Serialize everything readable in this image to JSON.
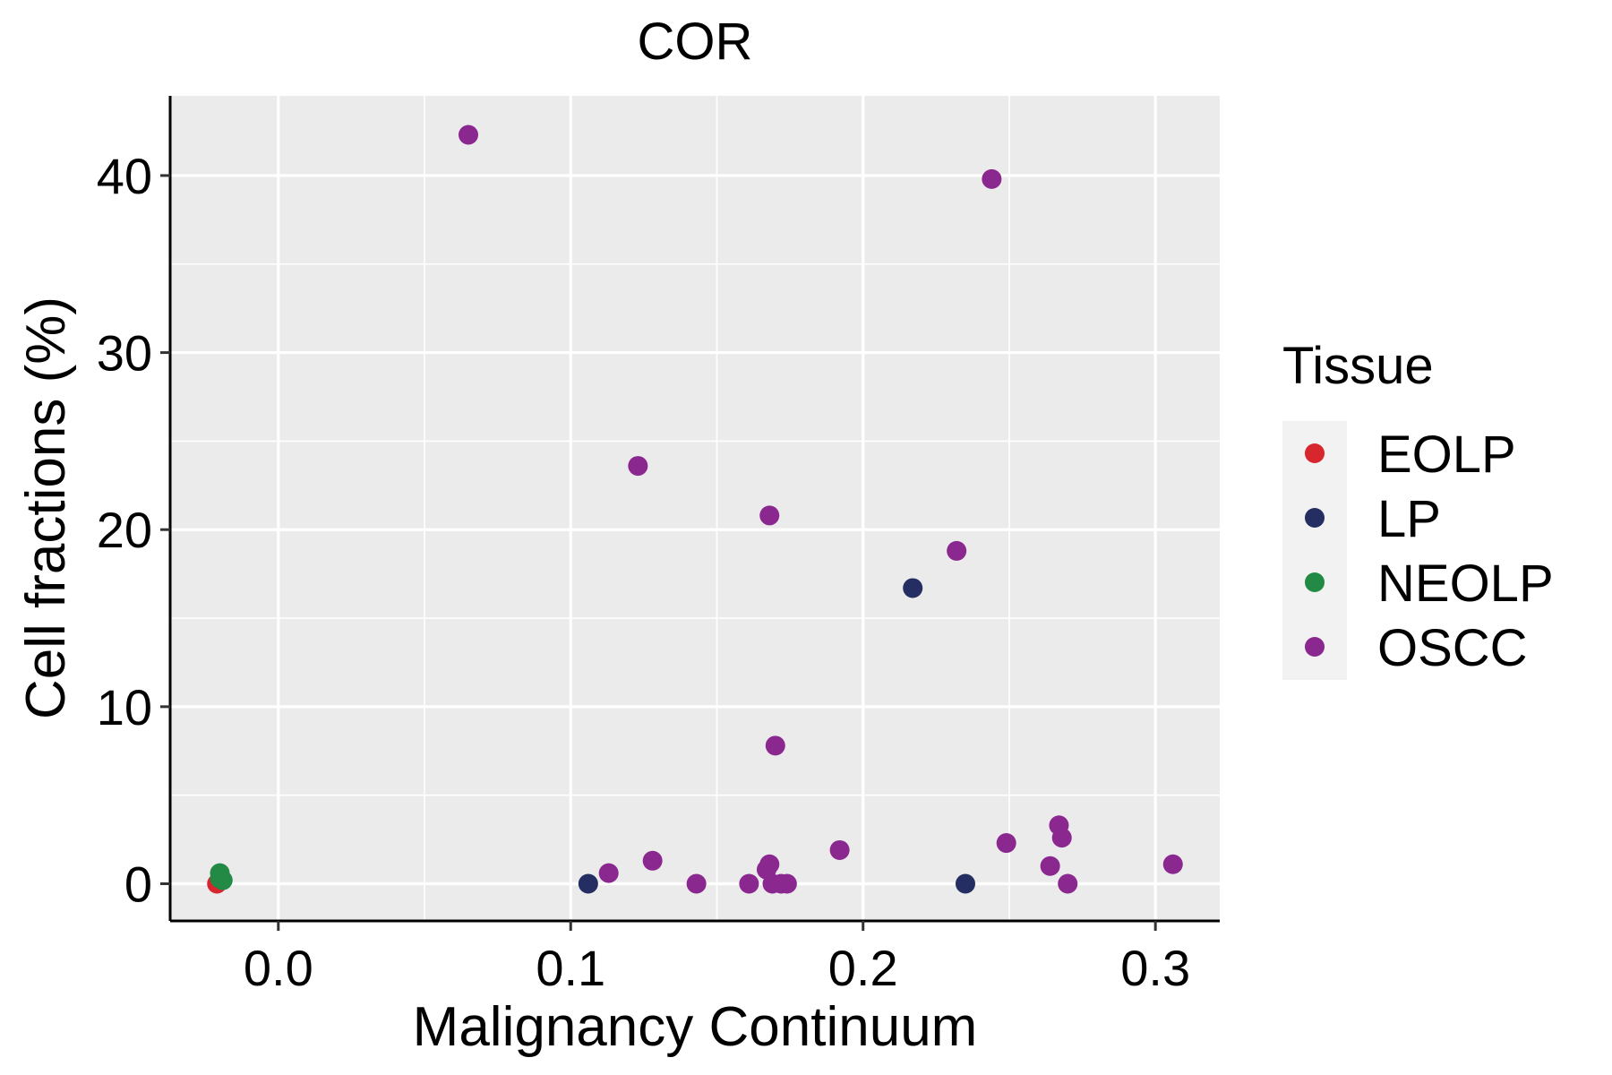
{
  "chart_data": {
    "type": "scatter",
    "title": "COR",
    "xlabel": "Malignancy Continuum",
    "ylabel": "Cell fractions (%)",
    "xlim": [
      -0.037,
      0.322
    ],
    "ylim": [
      -2.1,
      44.5
    ],
    "x_ticks": [
      0.0,
      0.1,
      0.2,
      0.3
    ],
    "x_tick_labels": [
      "0.0",
      "0.1",
      "0.2",
      "0.3"
    ],
    "y_ticks": [
      0,
      10,
      20,
      30,
      40
    ],
    "y_tick_labels": [
      "0",
      "10",
      "20",
      "30",
      "40"
    ],
    "grid": true,
    "legend": {
      "title": "Tissue",
      "position": "right",
      "entries": [
        {
          "label": "EOLP",
          "color": "#D7262E"
        },
        {
          "label": "LP",
          "color": "#242E62"
        },
        {
          "label": "NEOLP",
          "color": "#238A45"
        },
        {
          "label": "OSCC",
          "color": "#8A2890"
        }
      ]
    },
    "series": [
      {
        "name": "EOLP",
        "color": "#D7262E",
        "points": [
          [
            -0.021,
            0.0
          ]
        ]
      },
      {
        "name": "NEOLP",
        "color": "#238A45",
        "points": [
          [
            -0.02,
            0.3
          ],
          [
            -0.02,
            0.6
          ],
          [
            -0.019,
            0.2
          ]
        ]
      },
      {
        "name": "LP",
        "color": "#242E62",
        "points": [
          [
            0.106,
            0.0
          ],
          [
            0.217,
            16.7
          ],
          [
            0.235,
            0.0
          ]
        ]
      },
      {
        "name": "OSCC",
        "color": "#8A2890",
        "points": [
          [
            0.065,
            42.3
          ],
          [
            0.244,
            39.8
          ],
          [
            0.123,
            23.6
          ],
          [
            0.168,
            20.8
          ],
          [
            0.232,
            18.8
          ],
          [
            0.17,
            7.8
          ],
          [
            0.113,
            0.6
          ],
          [
            0.128,
            1.3
          ],
          [
            0.143,
            0.0
          ],
          [
            0.161,
            0.0
          ],
          [
            0.167,
            0.8
          ],
          [
            0.168,
            1.1
          ],
          [
            0.169,
            0.0
          ],
          [
            0.172,
            0.0
          ],
          [
            0.174,
            0.0
          ],
          [
            0.192,
            1.9
          ],
          [
            0.249,
            2.3
          ],
          [
            0.264,
            1.0
          ],
          [
            0.267,
            3.3
          ],
          [
            0.268,
            2.6
          ],
          [
            0.27,
            0.0
          ],
          [
            0.306,
            1.1
          ]
        ]
      }
    ]
  }
}
